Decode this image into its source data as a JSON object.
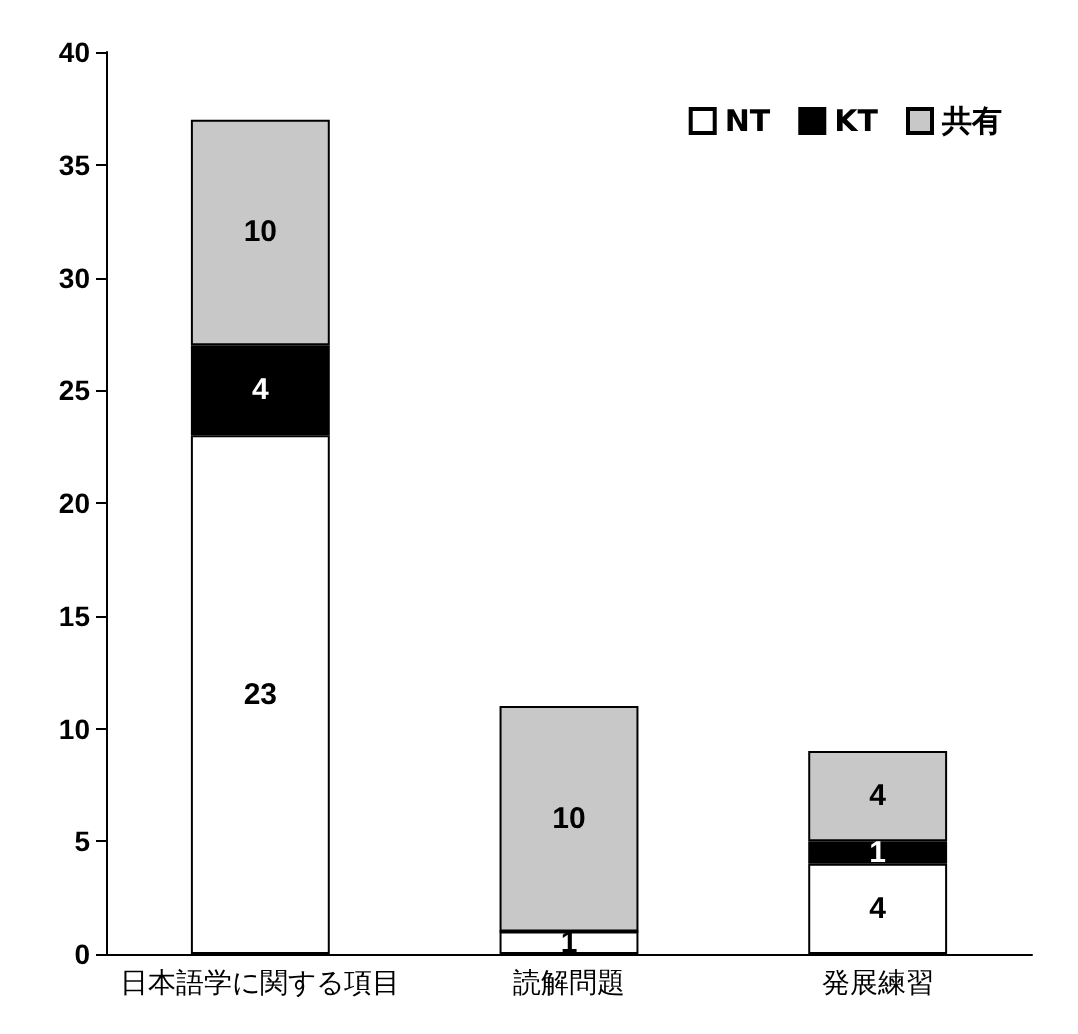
{
  "chart_data": {
    "type": "bar",
    "stacked": true,
    "categories": [
      "日本語学に関する項目",
      "読解問題",
      "発展練習"
    ],
    "series": [
      {
        "name": "NT",
        "color": "#ffffff",
        "values": [
          23,
          1,
          4
        ],
        "value_labels": [
          "23",
          "1",
          "4"
        ]
      },
      {
        "name": "KT",
        "color": "#000000",
        "values": [
          4,
          0,
          1
        ],
        "value_labels": [
          "4",
          null,
          "1"
        ]
      },
      {
        "name": "共有",
        "color": "#c8c8c8",
        "values": [
          10,
          10,
          4
        ],
        "value_labels": [
          "10",
          "10",
          "4"
        ]
      }
    ],
    "ylim": [
      0,
      40
    ],
    "yticks": [
      0,
      5,
      10,
      15,
      20,
      25,
      30,
      35,
      40
    ],
    "grid": false,
    "legend": "top right"
  }
}
